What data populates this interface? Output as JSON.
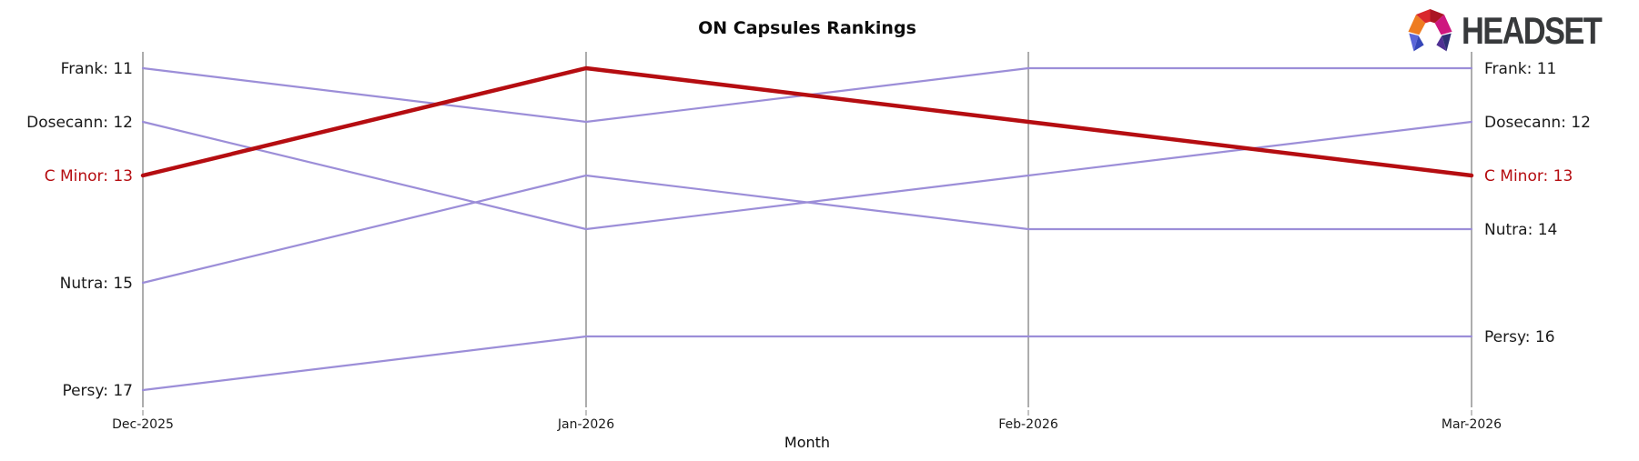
{
  "title": "ON Capsules Rankings",
  "logo": {
    "text": "HEADSET",
    "icon": "headset-faceted-arch-mark",
    "text_color": "#37393b",
    "icon_colors": [
      "#ee7c21",
      "#d9282c",
      "#ab1523",
      "#ce177f",
      "#5b66d9",
      "#3647b8",
      "#503093",
      "#2e2f74"
    ]
  },
  "chart_data": {
    "type": "line",
    "subtype": "bump-ranking",
    "title": "ON Capsules Rankings",
    "xlabel": "Month",
    "x_tick_labels": [
      "Dec-2025",
      "Jan-2026",
      "Feb-2026",
      "Mar-2026"
    ],
    "y_axis": {
      "kind": "rank",
      "min": 11,
      "max": 17,
      "inverted": true,
      "gridlines": false
    },
    "legend_position": "none-direct-labels-at-line-ends",
    "axis_color": "#adadad",
    "label_color": "#1a1a1a",
    "series": [
      {
        "name": "Frank",
        "values": [
          11,
          12,
          11,
          11
        ],
        "color": "#9c8ed8",
        "width": 2.2,
        "highlight": false,
        "label_left": "Frank: 11",
        "label_right": "Frank: 11"
      },
      {
        "name": "Dosecann",
        "values": [
          12,
          14,
          13,
          12
        ],
        "color": "#9c8ed8",
        "width": 2.2,
        "highlight": false,
        "label_left": "Dosecann: 12",
        "label_right": "Dosecann: 12"
      },
      {
        "name": "C Minor",
        "values": [
          13,
          11,
          12,
          13
        ],
        "color": "#b50d11",
        "width": 4.5,
        "highlight": true,
        "label_left": "C Minor: 13",
        "label_right": "C Minor: 13"
      },
      {
        "name": "Nutra",
        "values": [
          15,
          13,
          14,
          14
        ],
        "color": "#9c8ed8",
        "width": 2.2,
        "highlight": false,
        "label_left": "Nutra: 15",
        "label_right": "Nutra: 14"
      },
      {
        "name": "Persy",
        "values": [
          17,
          16,
          16,
          16
        ],
        "color": "#9c8ed8",
        "width": 2.2,
        "highlight": false,
        "label_left": "Persy: 17",
        "label_right": "Persy: 16"
      }
    ]
  }
}
